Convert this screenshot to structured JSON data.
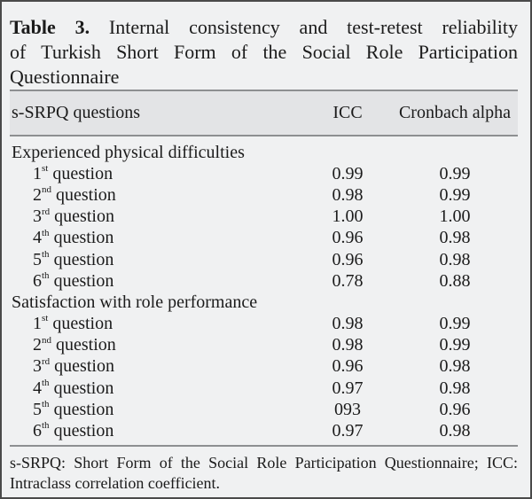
{
  "panel": {
    "title": {
      "label": "Table 3.",
      "line1_rest": "Internal consistency and test-retest reliability",
      "line2": "of Turkish Short Form of the Social Role Participation",
      "line3": "Questionnaire"
    },
    "header": {
      "questions": "s-SRPQ questions",
      "icc": "ICC",
      "alpha": "Cronbach alpha"
    },
    "sections": [
      {
        "heading": "Experienced physical difficulties",
        "rows": [
          {
            "num": "1",
            "sup": "st",
            "word": " question",
            "icc": "0.99",
            "alpha": "0.99"
          },
          {
            "num": "2",
            "sup": "nd",
            "word": " question",
            "icc": "0.98",
            "alpha": "0.99"
          },
          {
            "num": "3",
            "sup": "rd",
            "word": " question",
            "icc": "1.00",
            "alpha": "1.00"
          },
          {
            "num": "4",
            "sup": "th",
            "word": " question",
            "icc": "0.96",
            "alpha": "0.98"
          },
          {
            "num": "5",
            "sup": "th",
            "word": " question",
            "icc": "0.96",
            "alpha": "0.98"
          },
          {
            "num": "6",
            "sup": "th",
            "word": " question",
            "icc": "0.78",
            "alpha": "0.88"
          }
        ]
      },
      {
        "heading": "Satisfaction with role performance",
        "rows": [
          {
            "num": "1",
            "sup": "st",
            "word": " question",
            "icc": "0.98",
            "alpha": "0.99"
          },
          {
            "num": "2",
            "sup": "nd",
            "word": " question",
            "icc": "0.98",
            "alpha": "0.99"
          },
          {
            "num": "3",
            "sup": "rd",
            "word": " question",
            "icc": "0.96",
            "alpha": "0.98"
          },
          {
            "num": "4",
            "sup": "th",
            "word": " question",
            "icc": "0.97",
            "alpha": "0.98"
          },
          {
            "num": "5",
            "sup": "th",
            "word": " question",
            "icc": "093",
            "alpha": "0.96"
          },
          {
            "num": "6",
            "sup": "th",
            "word": " question",
            "icc": "0.97",
            "alpha": "0.98"
          }
        ]
      }
    ],
    "footnote": {
      "line1": "s-SRPQ: Short Form of the Social Role Participation Questionnaire; ICC:",
      "line2": "Intraclass correlation coefficient."
    },
    "colors": {
      "background": "#f0f1f2",
      "header_band": "#e3e4e6",
      "rule": "#8d8f91",
      "frame_border": "#4a4a4a",
      "text": "#1b1b1b"
    }
  }
}
